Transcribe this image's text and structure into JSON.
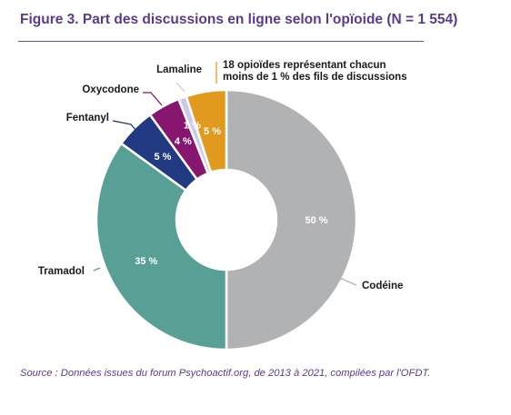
{
  "figure": {
    "title": "Figure 3. Part des discussions en ligne selon l'opïoide (N = 1 554)",
    "source": "Source : Données issues du forum Psychoactif.org, de 2013 à 2021, compilées par l'OFDT."
  },
  "chart_data": {
    "type": "pie",
    "title": "Figure 3. Part des discussions en ligne selon l'opïoide (N = 1 554)",
    "donut": true,
    "categories": [
      "Codéine",
      "Tramadol",
      "Fentanyl",
      "Oxycodone",
      "Lamaline",
      "18 opioïdes représentant chacun moins de 1 % des fils de discussions"
    ],
    "values": [
      50,
      35,
      5,
      4,
      1,
      5
    ],
    "value_labels": [
      "50 %",
      "35 %",
      "5 %",
      "4 %",
      "1 %",
      "5 %"
    ],
    "colors": [
      "#b1b2b4",
      "#58a095",
      "#213a82",
      "#87166e",
      "#d0c8e4",
      "#e29a1e"
    ],
    "label_colors": [
      "#ffffff",
      "#ffffff",
      "#ffffff",
      "#ffffff",
      "#ffffff",
      "#ffffff"
    ]
  }
}
